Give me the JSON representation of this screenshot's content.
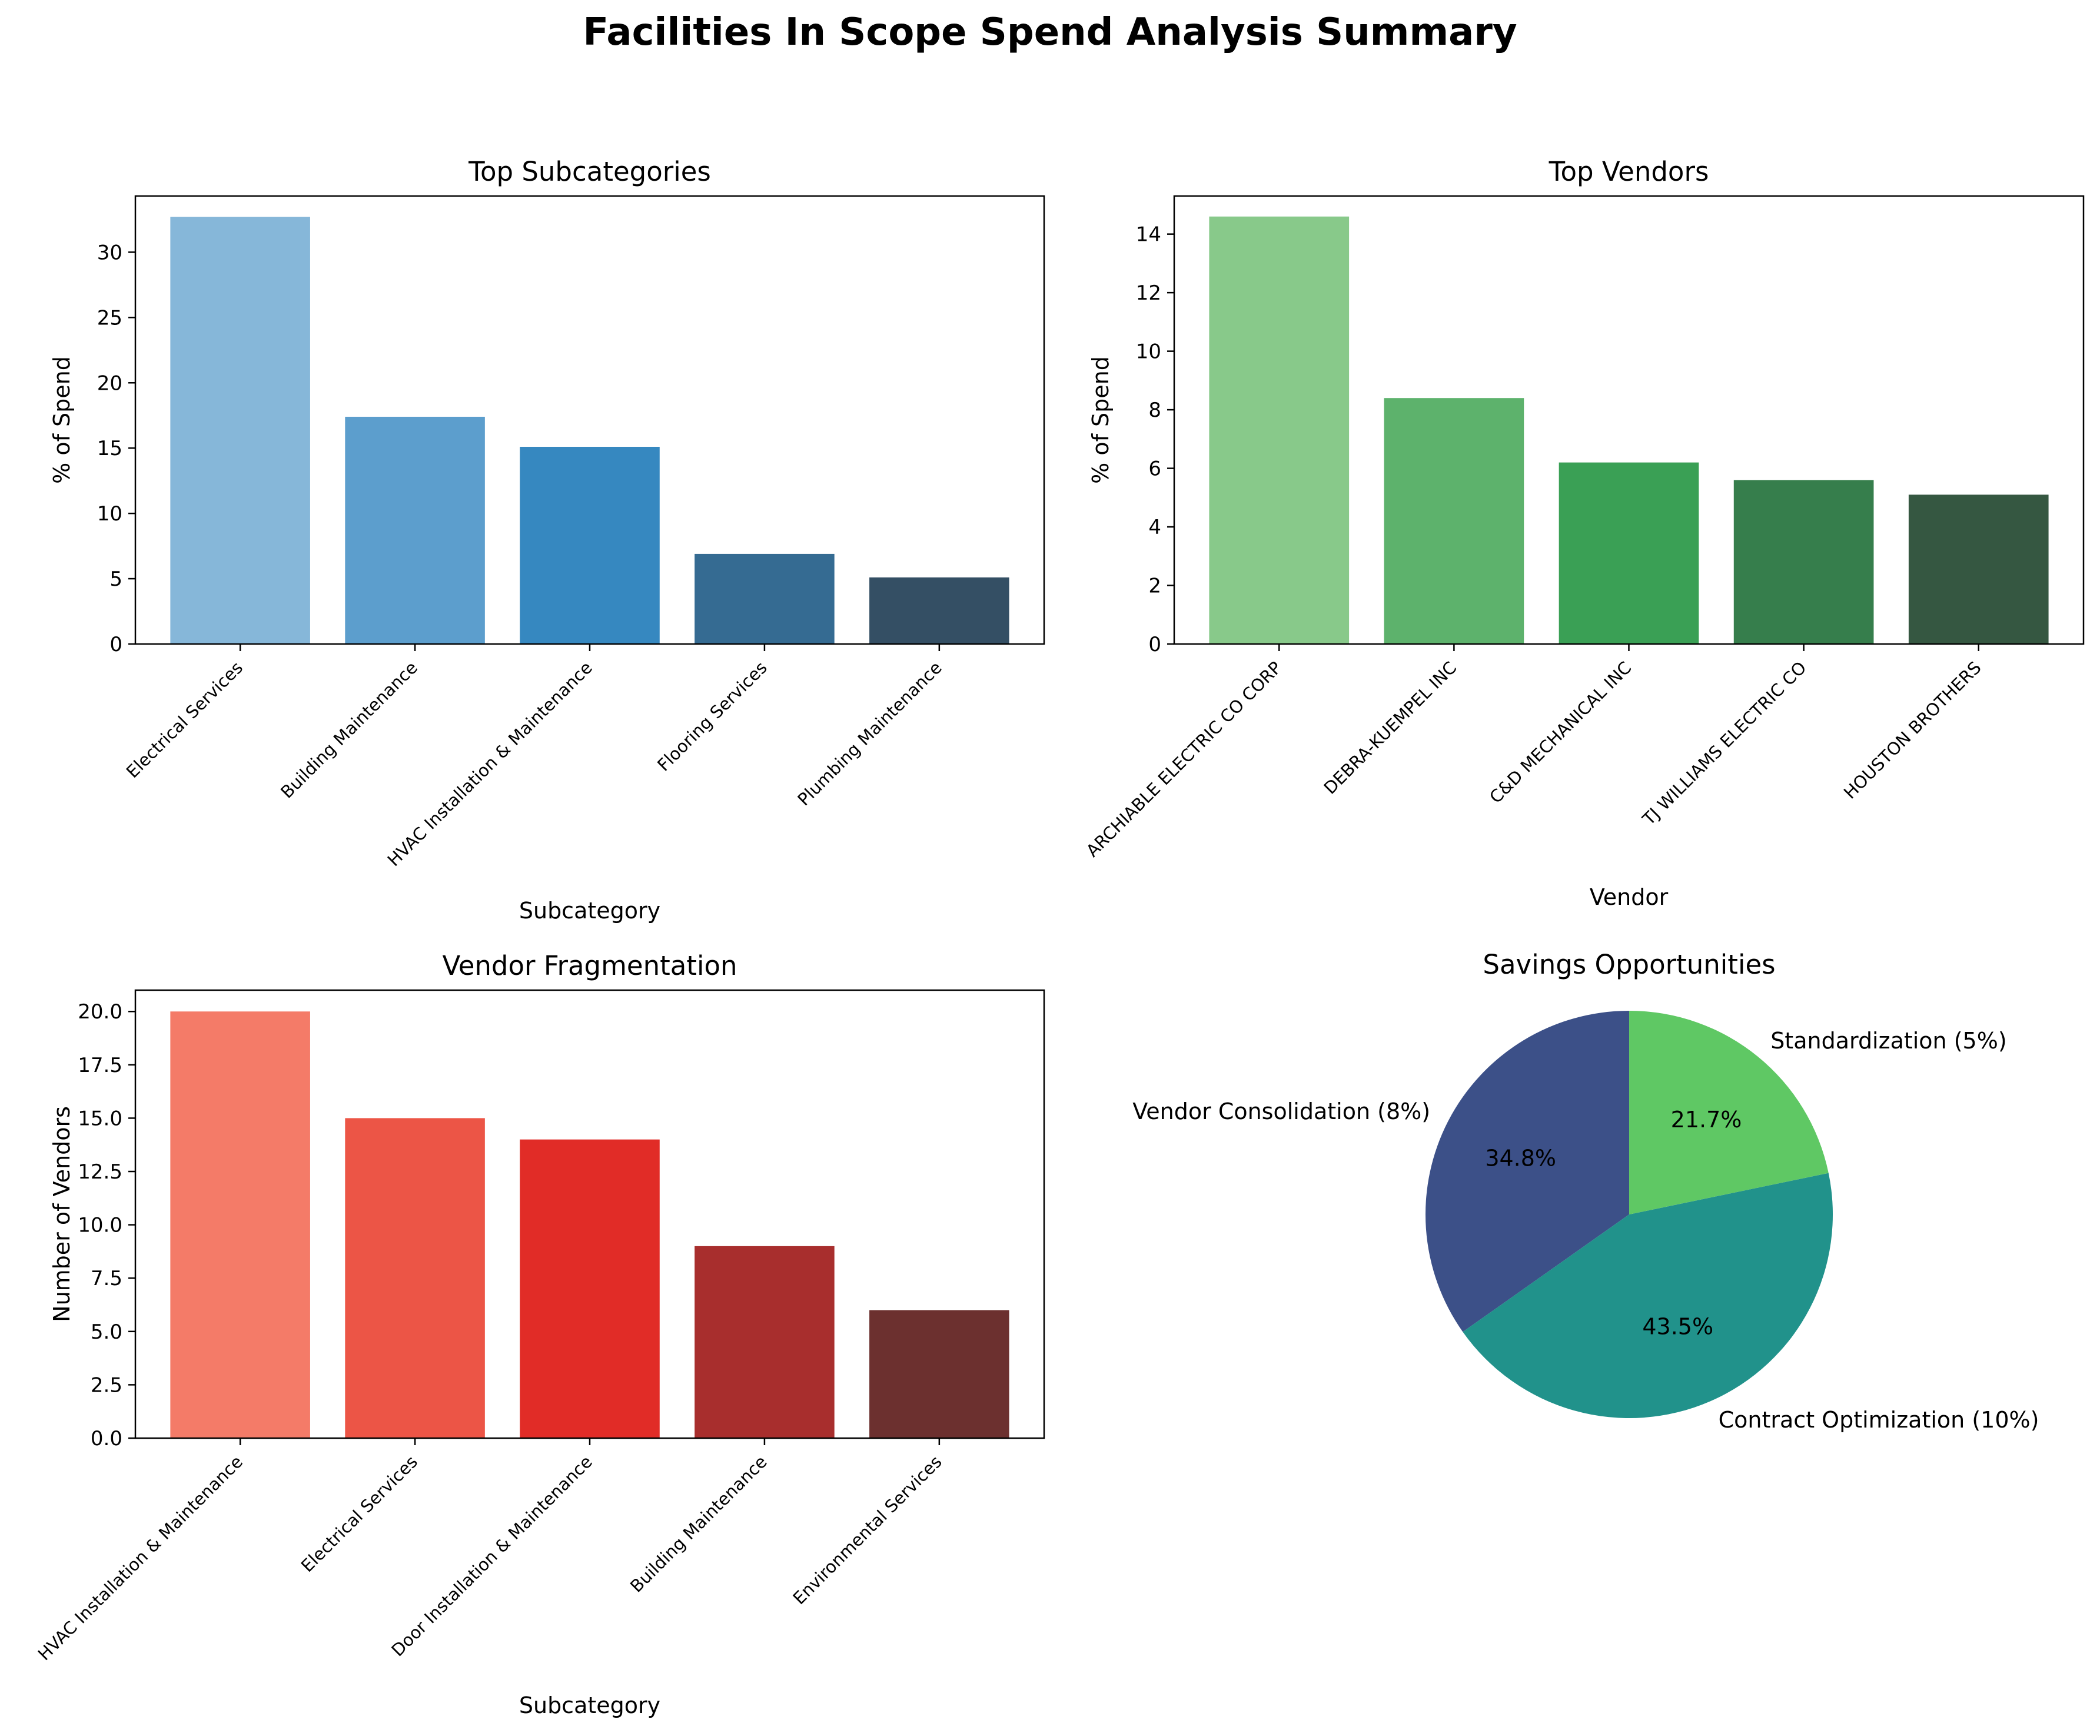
{
  "figure": {
    "title": "Facilities In Scope Spend Analysis Summary"
  },
  "chart_data": [
    {
      "id": "top-subcategories",
      "type": "bar",
      "title": "Top Subcategories",
      "xlabel": "Subcategory",
      "ylabel": "% of Spend",
      "categories": [
        "Electrical Services",
        "Building Maintenance",
        "HVAC Installation & Maintenance",
        "Flooring Services",
        "Plumbing Maintenance"
      ],
      "values": [
        32.7,
        17.4,
        15.1,
        6.9,
        5.1
      ],
      "colors": [
        "#86b7d9",
        "#5c9ecd",
        "#3688c0",
        "#356b92",
        "#344f64"
      ],
      "ylim": [
        0,
        34.3
      ],
      "yticks": [
        0,
        5,
        10,
        15,
        20,
        25,
        30
      ],
      "ytick_labels": [
        "0",
        "5",
        "10",
        "15",
        "20",
        "25",
        "30"
      ],
      "grid": false
    },
    {
      "id": "top-vendors",
      "type": "bar",
      "title": "Top Vendors",
      "xlabel": "Vendor",
      "ylabel": "% of Spend",
      "categories": [
        "ARCHIABLE ELECTRIC CO CORP",
        "DEBRA-KUEMPEL INC",
        "C&D MECHANICAL INC",
        "TJ WILLIAMS ELECTRIC CO",
        "HOUSTON BROTHERS"
      ],
      "values": [
        14.6,
        8.4,
        6.2,
        5.6,
        5.1
      ],
      "colors": [
        "#88c98a",
        "#5db26c",
        "#3aa055",
        "#367e4c",
        "#355741"
      ],
      "ylim": [
        0,
        15.3
      ],
      "yticks": [
        0,
        2,
        4,
        6,
        8,
        10,
        12,
        14
      ],
      "ytick_labels": [
        "0",
        "2",
        "4",
        "6",
        "8",
        "10",
        "12",
        "14"
      ],
      "grid": false
    },
    {
      "id": "vendor-fragmentation",
      "type": "bar",
      "title": "Vendor Fragmentation",
      "xlabel": "Subcategory",
      "ylabel": "Number of Vendors",
      "categories": [
        "HVAC Installation & Maintenance",
        "Electrical Services",
        "Door Installation & Maintenance",
        "Building Maintenance",
        "Environmental Services"
      ],
      "values": [
        20,
        15,
        14,
        9,
        6
      ],
      "colors": [
        "#f47b68",
        "#ec5546",
        "#e12c27",
        "#a82e2d",
        "#6c302f"
      ],
      "ylim": [
        0,
        21
      ],
      "yticks": [
        0,
        2.5,
        5,
        7.5,
        10,
        12.5,
        15,
        17.5,
        20
      ],
      "ytick_labels": [
        "0.0",
        "2.5",
        "5.0",
        "7.5",
        "10.0",
        "12.5",
        "15.0",
        "17.5",
        "20.0"
      ],
      "grid": false
    },
    {
      "id": "savings-opportunities",
      "type": "pie",
      "title": "Savings Opportunities",
      "slices": [
        {
          "label": "Vendor Consolidation (8%)",
          "value": 8,
          "pct": "34.8%",
          "color": "#3c5088"
        },
        {
          "label": "Contract Optimization (10%)",
          "value": 10,
          "pct": "43.5%",
          "color": "#21928b"
        },
        {
          "label": "Standardization (5%)",
          "value": 5,
          "pct": "21.7%",
          "color": "#5fc864"
        }
      ],
      "start_angle_deg": 90,
      "direction": "counterclockwise"
    }
  ]
}
